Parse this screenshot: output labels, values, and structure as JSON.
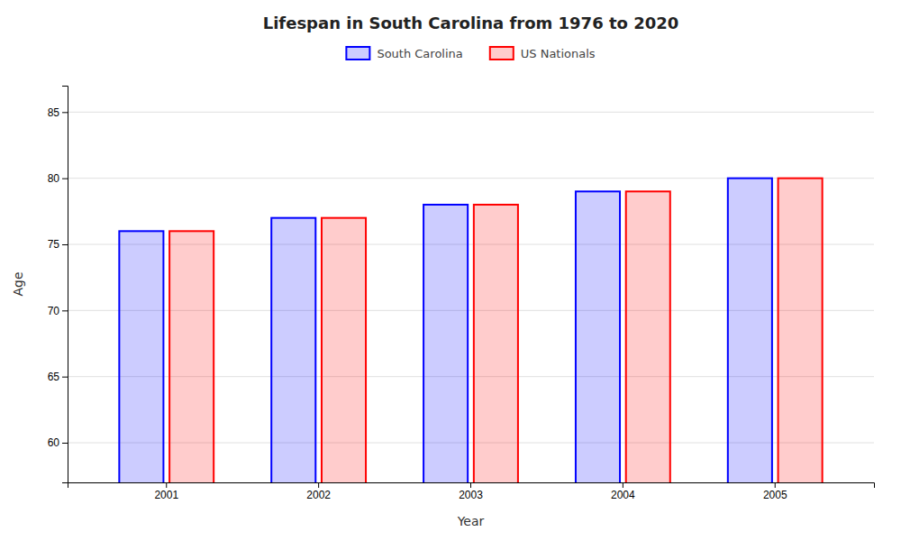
{
  "chart_data": {
    "type": "bar",
    "title": "Lifespan in South Carolina from 1976 to 2020",
    "xlabel": "Year",
    "ylabel": "Age",
    "categories": [
      "2001",
      "2002",
      "2003",
      "2004",
      "2005"
    ],
    "series": [
      {
        "name": "South Carolina",
        "color": "#0000ff",
        "values": [
          76.0,
          77.0,
          78.0,
          79.0,
          80.0
        ]
      },
      {
        "name": "US Nationals",
        "color": "#ff0000",
        "values": [
          76.0,
          77.0,
          78.0,
          79.0,
          80.0
        ]
      }
    ],
    "ylim": [
      57,
      87
    ],
    "yticks": [
      60,
      65,
      70,
      75,
      80,
      85
    ],
    "grid": true,
    "legend": "top"
  }
}
